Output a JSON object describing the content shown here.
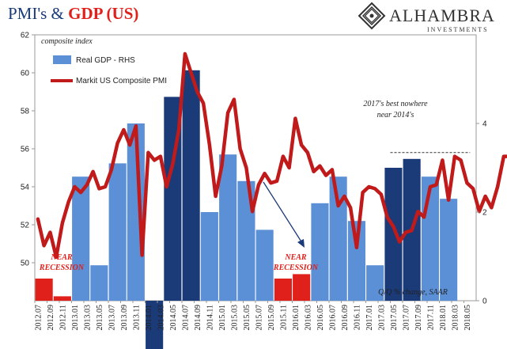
{
  "chart_data": {
    "type": "bar",
    "title_part1": "PMI's & ",
    "title_part2": "GDP (US)",
    "left_axis_label": "composite index",
    "left_ticks": [
      50,
      52,
      54,
      56,
      58,
      60,
      62
    ],
    "left_range": [
      48,
      62
    ],
    "right_ticks": [
      0,
      2,
      4
    ],
    "right_range": [
      0,
      6
    ],
    "x_tick_labels": [
      "2012.07",
      "2012.09",
      "2012.11",
      "2013.01",
      "2013.03",
      "2013.05",
      "2013.07",
      "2013.09",
      "2013.11",
      "2014.01",
      "2014.03",
      "2014.05",
      "2014.07",
      "2014.09",
      "2014.11",
      "2015.01",
      "2015.03",
      "2015.05",
      "2015.07",
      "2015.09",
      "2015.11",
      "2016.01",
      "2016.03",
      "2016.05",
      "2016.07",
      "2016.09",
      "2016.11",
      "2017.01",
      "2017.03",
      "2017.05",
      "2017.07",
      "2017.09",
      "2017.11",
      "2018.01",
      "2018.03",
      "2018.05"
    ],
    "series": [
      {
        "name": "Real GDP - RHS",
        "axis": "right",
        "color": "#5b8fd6",
        "highlight_color": "#1b3a78",
        "recession_color": "#e0201b",
        "quarters": [
          {
            "start": "2012.07",
            "value": 0.5,
            "style": "recession"
          },
          {
            "start": "2012.10",
            "value": 0.1,
            "style": "recession"
          },
          {
            "start": "2013.01",
            "value": 2.8,
            "style": "normal"
          },
          {
            "start": "2013.04",
            "value": 0.8,
            "style": "normal"
          },
          {
            "start": "2013.07",
            "value": 3.1,
            "style": "normal"
          },
          {
            "start": "2013.10",
            "value": 4.0,
            "style": "normal"
          },
          {
            "start": "2014.01",
            "value": -1.2,
            "style": "highlight"
          },
          {
            "start": "2014.04",
            "value": 4.6,
            "style": "highlight"
          },
          {
            "start": "2014.07",
            "value": 5.2,
            "style": "highlight"
          },
          {
            "start": "2014.10",
            "value": 2.0,
            "style": "normal"
          },
          {
            "start": "2015.01",
            "value": 3.3,
            "style": "normal"
          },
          {
            "start": "2015.04",
            "value": 2.7,
            "style": "normal"
          },
          {
            "start": "2015.07",
            "value": 1.6,
            "style": "normal"
          },
          {
            "start": "2015.10",
            "value": 0.5,
            "style": "recession"
          },
          {
            "start": "2016.01",
            "value": 0.6,
            "style": "recession"
          },
          {
            "start": "2016.04",
            "value": 2.2,
            "style": "normal"
          },
          {
            "start": "2016.07",
            "value": 2.8,
            "style": "normal"
          },
          {
            "start": "2016.10",
            "value": 1.8,
            "style": "normal"
          },
          {
            "start": "2017.01",
            "value": 0.8,
            "style": "normal"
          },
          {
            "start": "2017.04",
            "value": 3.0,
            "style": "highlight"
          },
          {
            "start": "2017.07",
            "value": 3.2,
            "style": "highlight"
          },
          {
            "start": "2017.10",
            "value": 2.8,
            "style": "normal"
          },
          {
            "start": "2018.01",
            "value": 2.3,
            "style": "normal"
          }
        ]
      },
      {
        "name": "Markit US Composite PMI",
        "axis": "left",
        "color": "#c01a1a",
        "start": "2012.07",
        "values": [
          52.3,
          50.9,
          51.6,
          50.3,
          52.1,
          53.2,
          54.0,
          53.7,
          54.1,
          54.8,
          53.9,
          54.0,
          54.9,
          56.3,
          57.0,
          56.2,
          57.2,
          50.4,
          55.8,
          55.4,
          55.6,
          54.0,
          55.2,
          57.0,
          61.0,
          60.0,
          59.0,
          58.4,
          56.2,
          53.5,
          55.1,
          57.9,
          58.6,
          56.0,
          55.0,
          52.7,
          54.1,
          54.7,
          54.2,
          54.3,
          55.6,
          55.0,
          57.6,
          56.2,
          55.8,
          54.8,
          55.1,
          54.6,
          54.9,
          53.0,
          53.5,
          52.9,
          50.8,
          53.7,
          54.0,
          53.9,
          53.6,
          52.4,
          51.9,
          51.1,
          51.6,
          51.7,
          52.7,
          52.4,
          54.0,
          54.1,
          55.4,
          53.3,
          55.6,
          55.4,
          54.2,
          53.9,
          52.7,
          53.5,
          52.9,
          54.0,
          55.6,
          55.6,
          56.3,
          55.8,
          55.2,
          53.8,
          54.1,
          55.8,
          54.7,
          55.3
        ],
        "ylim": [
          48,
          62
        ]
      }
    ],
    "annotations": {
      "near_recession_1": [
        "NEAR",
        "RECESSION"
      ],
      "near_recession_2": [
        "NEAR",
        "RECESSION"
      ],
      "best_note": [
        "2017's best nowhere",
        "near 2014's"
      ],
      "units_note": "Q/Q % change, SAAR"
    },
    "best_line": {
      "start": "2017.05",
      "end": "2018.05",
      "value": 55.8
    }
  },
  "logo": {
    "name": "ALHAMBRA",
    "sub": "INVESTMENTS"
  }
}
